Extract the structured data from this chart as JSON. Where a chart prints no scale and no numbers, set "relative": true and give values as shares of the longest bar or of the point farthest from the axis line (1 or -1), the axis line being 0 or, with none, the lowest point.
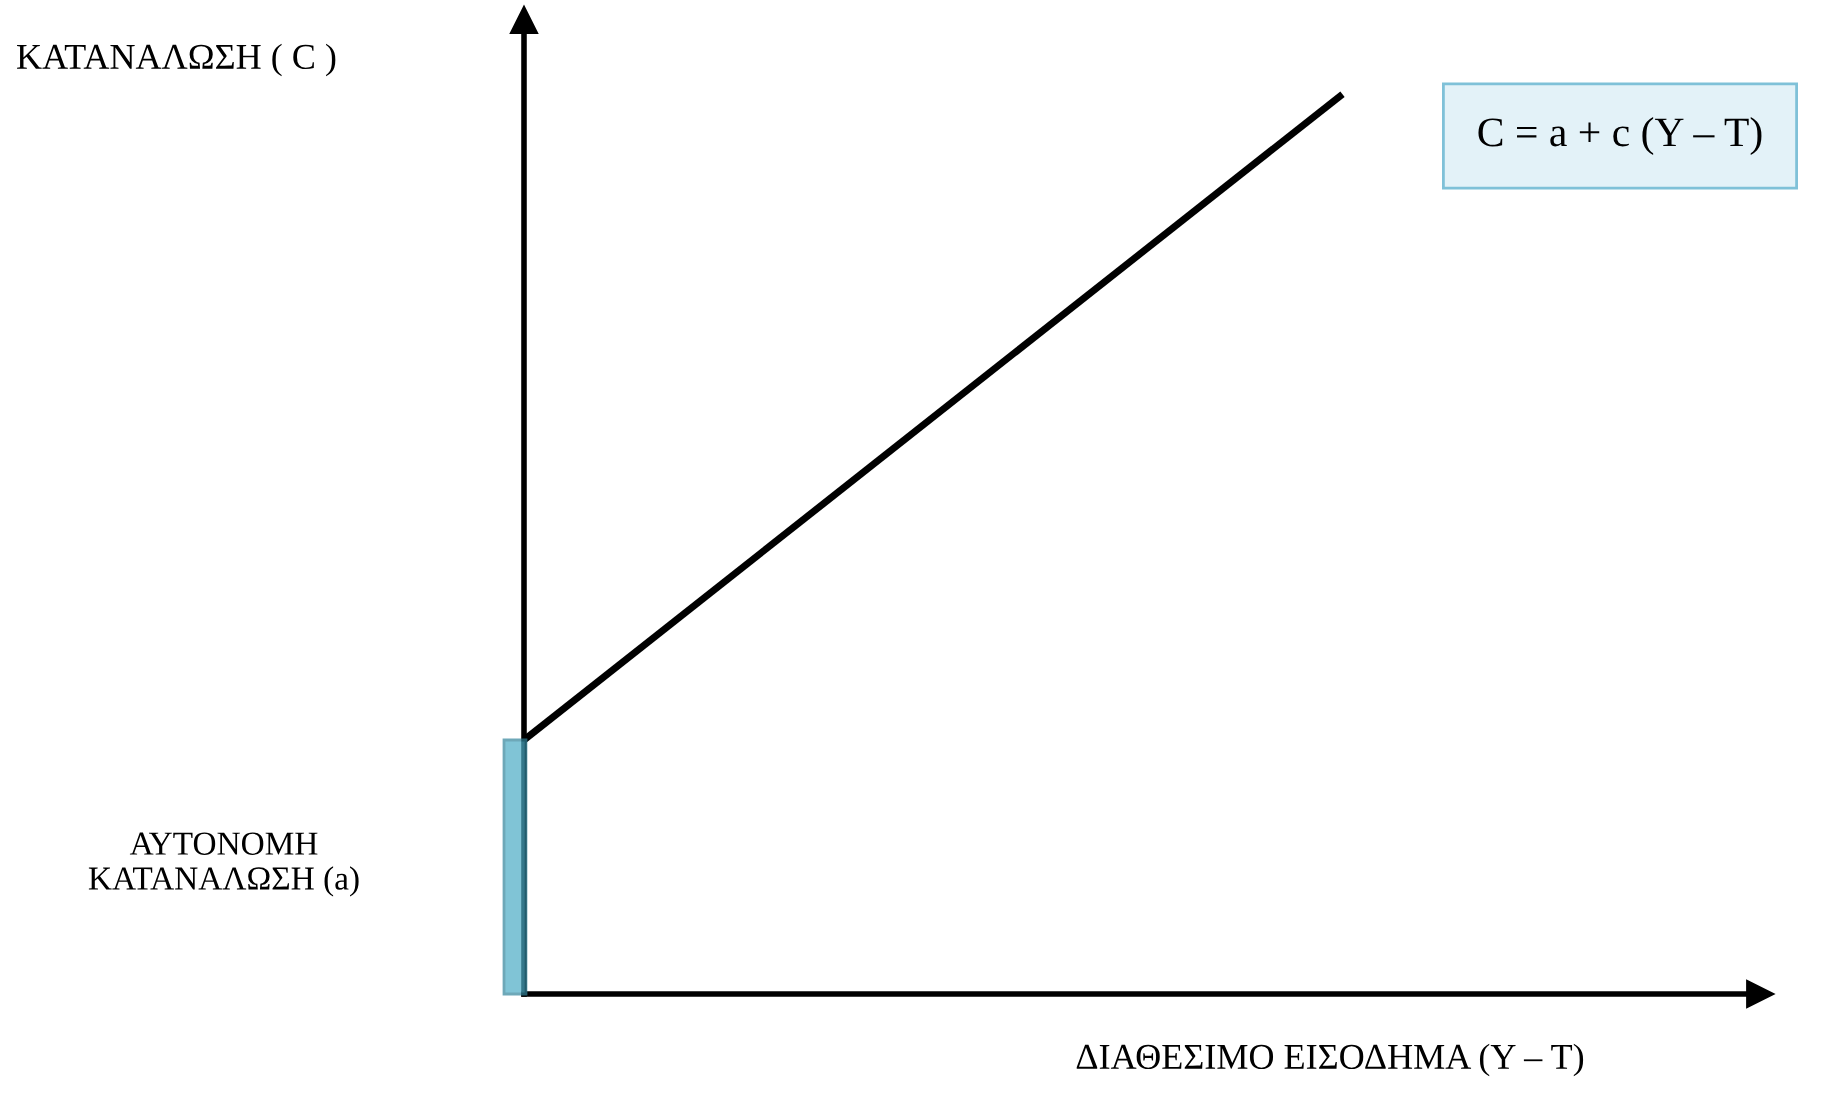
{
  "chart_data": {
    "type": "line",
    "relative": true,
    "categories": [
      null,
      null
    ],
    "series": [
      {
        "color": "#000000",
        "values": [
          0.283,
          1
        ]
      }
    ],
    "xlabel": "ΔΙΑΘΕΣΙΜΟ ΕΙΣΟΔΗΜΑ (Y – T)",
    "annotations": [
      "ΚΑΤΑΝΑΛΩΣΗ ( C )",
      "C = a + c (Y – T)",
      "ΑΥΤΟΝΟΜΗ\nΚΑΤΑΝΑΛΩΣΗ (a)"
    ],
    "grid": false,
    "legend": false,
    "marker": "none",
    "line_style": "solid"
  }
}
